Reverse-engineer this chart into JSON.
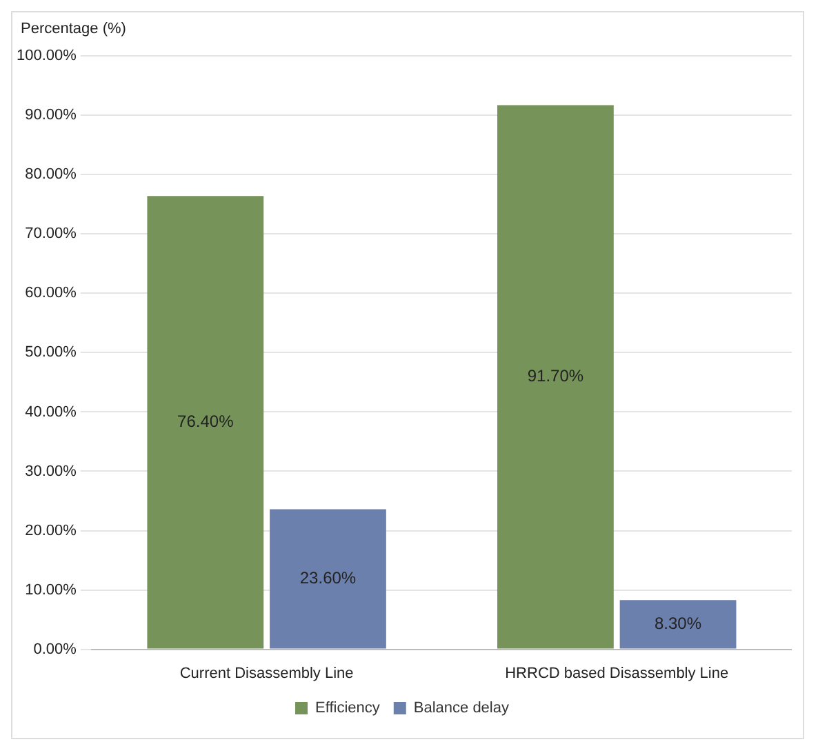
{
  "chart_data": {
    "type": "bar",
    "ylabel": "Percentage (%)",
    "categories": [
      "Current Disassembly Line",
      "HRRCD based Disassembly Line"
    ],
    "series": [
      {
        "name": "Efficiency",
        "color": "#76945a",
        "values": [
          76.4,
          91.7
        ],
        "value_labels": [
          "76.40%",
          "91.70%"
        ]
      },
      {
        "name": "Balance delay",
        "color": "#6c80ad",
        "values": [
          23.6,
          8.3
        ],
        "value_labels": [
          "23.60%",
          "8.30%"
        ]
      }
    ],
    "ylim": [
      0,
      100
    ],
    "yticks": [
      {
        "value": 0,
        "label": "0.00%"
      },
      {
        "value": 10,
        "label": "10.00%"
      },
      {
        "value": 20,
        "label": "20.00%"
      },
      {
        "value": 30,
        "label": "30.00%"
      },
      {
        "value": 40,
        "label": "40.00%"
      },
      {
        "value": 50,
        "label": "50.00%"
      },
      {
        "value": 60,
        "label": "60.00%"
      },
      {
        "value": 70,
        "label": "70.00%"
      },
      {
        "value": 80,
        "label": "80.00%"
      },
      {
        "value": 90,
        "label": "90.00%"
      },
      {
        "value": 100,
        "label": "100.00%"
      }
    ],
    "grid": "y",
    "legend": "bottom"
  }
}
